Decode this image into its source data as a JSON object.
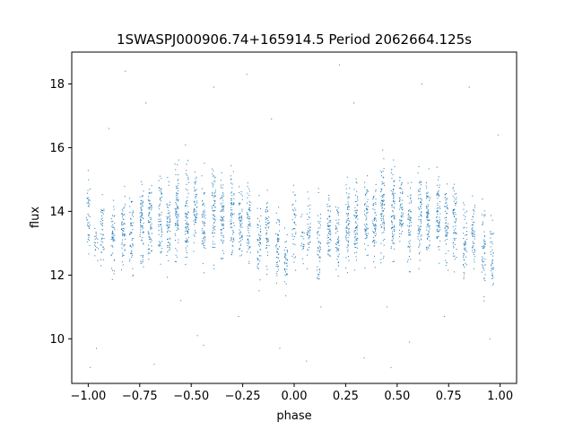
{
  "chart_data": {
    "type": "scatter",
    "title": "1SWASPJ000906.74+165914.5 Period 2062664.125s",
    "xlabel": "phase",
    "ylabel": "flux",
    "xlim": [
      -1.08,
      1.08
    ],
    "ylim": [
      8.6,
      19.0
    ],
    "x_ticks": [
      -1.0,
      -0.75,
      -0.5,
      -0.25,
      0.0,
      0.25,
      0.5,
      0.75,
      1.0
    ],
    "x_tick_labels": [
      "−1.00",
      "−0.75",
      "−0.50",
      "−0.25",
      "0.00",
      "0.25",
      "0.50",
      "0.75",
      "1.00"
    ],
    "y_ticks": [
      10,
      12,
      14,
      16,
      18
    ],
    "y_tick_labels": [
      "10",
      "12",
      "14",
      "16",
      "18"
    ],
    "grid": false,
    "legend": "none",
    "marker_color": "#1f77b4",
    "clusters": [
      {
        "phase": -1.0,
        "center": 13.8,
        "spread": 1.0,
        "n": 40
      },
      {
        "phase": -0.96,
        "center": 13.1,
        "spread": 0.6,
        "n": 20
      },
      {
        "phase": -0.93,
        "center": 13.4,
        "spread": 0.9,
        "n": 40
      },
      {
        "phase": -0.88,
        "center": 13.0,
        "spread": 1.1,
        "n": 50
      },
      {
        "phase": -0.83,
        "center": 13.4,
        "spread": 1.0,
        "n": 60
      },
      {
        "phase": -0.79,
        "center": 13.3,
        "spread": 1.0,
        "n": 50
      },
      {
        "phase": -0.74,
        "center": 13.6,
        "spread": 1.3,
        "n": 70
      },
      {
        "phase": -0.7,
        "center": 13.7,
        "spread": 1.2,
        "n": 70
      },
      {
        "phase": -0.65,
        "center": 13.8,
        "spread": 1.1,
        "n": 60
      },
      {
        "phase": -0.61,
        "center": 13.6,
        "spread": 1.1,
        "n": 60
      },
      {
        "phase": -0.57,
        "center": 14.0,
        "spread": 1.3,
        "n": 80
      },
      {
        "phase": -0.52,
        "center": 14.0,
        "spread": 1.3,
        "n": 80
      },
      {
        "phase": -0.48,
        "center": 14.1,
        "spread": 1.0,
        "n": 60
      },
      {
        "phase": -0.44,
        "center": 13.5,
        "spread": 1.2,
        "n": 60
      },
      {
        "phase": -0.39,
        "center": 14.0,
        "spread": 1.3,
        "n": 70
      },
      {
        "phase": -0.35,
        "center": 13.8,
        "spread": 1.2,
        "n": 70
      },
      {
        "phase": -0.3,
        "center": 13.9,
        "spread": 1.2,
        "n": 70
      },
      {
        "phase": -0.26,
        "center": 13.6,
        "spread": 1.1,
        "n": 60
      },
      {
        "phase": -0.22,
        "center": 13.6,
        "spread": 1.1,
        "n": 60
      },
      {
        "phase": -0.17,
        "center": 13.0,
        "spread": 1.2,
        "n": 50
      },
      {
        "phase": -0.13,
        "center": 13.4,
        "spread": 1.0,
        "n": 50
      },
      {
        "phase": -0.08,
        "center": 12.9,
        "spread": 1.2,
        "n": 50
      },
      {
        "phase": -0.04,
        "center": 12.6,
        "spread": 1.0,
        "n": 40
      },
      {
        "phase": 0.0,
        "center": 13.6,
        "spread": 1.1,
        "n": 40
      },
      {
        "phase": 0.04,
        "center": 13.1,
        "spread": 0.6,
        "n": 20
      },
      {
        "phase": 0.07,
        "center": 13.4,
        "spread": 0.9,
        "n": 40
      },
      {
        "phase": 0.12,
        "center": 13.0,
        "spread": 1.1,
        "n": 50
      },
      {
        "phase": 0.17,
        "center": 13.4,
        "spread": 1.0,
        "n": 60
      },
      {
        "phase": 0.21,
        "center": 13.3,
        "spread": 1.0,
        "n": 50
      },
      {
        "phase": 0.26,
        "center": 13.6,
        "spread": 1.3,
        "n": 70
      },
      {
        "phase": 0.3,
        "center": 13.7,
        "spread": 1.2,
        "n": 70
      },
      {
        "phase": 0.35,
        "center": 13.8,
        "spread": 1.1,
        "n": 60
      },
      {
        "phase": 0.39,
        "center": 13.6,
        "spread": 1.1,
        "n": 60
      },
      {
        "phase": 0.43,
        "center": 14.0,
        "spread": 1.3,
        "n": 80
      },
      {
        "phase": 0.48,
        "center": 14.0,
        "spread": 1.3,
        "n": 80
      },
      {
        "phase": 0.52,
        "center": 14.1,
        "spread": 1.0,
        "n": 60
      },
      {
        "phase": 0.56,
        "center": 13.5,
        "spread": 1.2,
        "n": 60
      },
      {
        "phase": 0.61,
        "center": 14.0,
        "spread": 1.3,
        "n": 70
      },
      {
        "phase": 0.65,
        "center": 13.8,
        "spread": 1.2,
        "n": 70
      },
      {
        "phase": 0.7,
        "center": 13.9,
        "spread": 1.2,
        "n": 70
      },
      {
        "phase": 0.74,
        "center": 13.6,
        "spread": 1.1,
        "n": 60
      },
      {
        "phase": 0.78,
        "center": 13.6,
        "spread": 1.1,
        "n": 60
      },
      {
        "phase": 0.83,
        "center": 13.0,
        "spread": 1.2,
        "n": 50
      },
      {
        "phase": 0.87,
        "center": 13.4,
        "spread": 1.0,
        "n": 50
      },
      {
        "phase": 0.92,
        "center": 12.9,
        "spread": 1.2,
        "n": 50
      },
      {
        "phase": 0.96,
        "center": 12.6,
        "spread": 1.0,
        "n": 40
      }
    ],
    "outliers": [
      {
        "x": -0.99,
        "y": 9.1
      },
      {
        "x": -0.96,
        "y": 9.7
      },
      {
        "x": -0.9,
        "y": 16.6
      },
      {
        "x": -0.82,
        "y": 18.4
      },
      {
        "x": -0.72,
        "y": 17.4
      },
      {
        "x": -0.68,
        "y": 9.2
      },
      {
        "x": -0.55,
        "y": 11.2
      },
      {
        "x": -0.47,
        "y": 10.1
      },
      {
        "x": -0.44,
        "y": 9.8
      },
      {
        "x": -0.39,
        "y": 17.9
      },
      {
        "x": -0.27,
        "y": 10.7
      },
      {
        "x": -0.23,
        "y": 18.3
      },
      {
        "x": -0.11,
        "y": 16.9
      },
      {
        "x": -0.07,
        "y": 9.7
      },
      {
        "x": 0.06,
        "y": 9.3
      },
      {
        "x": 0.13,
        "y": 11.0
      },
      {
        "x": 0.22,
        "y": 18.6
      },
      {
        "x": 0.29,
        "y": 17.4
      },
      {
        "x": 0.34,
        "y": 9.4
      },
      {
        "x": 0.45,
        "y": 11.0
      },
      {
        "x": 0.47,
        "y": 9.1
      },
      {
        "x": 0.56,
        "y": 9.9
      },
      {
        "x": 0.62,
        "y": 18.0
      },
      {
        "x": 0.73,
        "y": 10.7
      },
      {
        "x": 0.85,
        "y": 17.9
      },
      {
        "x": 0.95,
        "y": 10.0
      },
      {
        "x": 0.99,
        "y": 16.4
      }
    ]
  }
}
